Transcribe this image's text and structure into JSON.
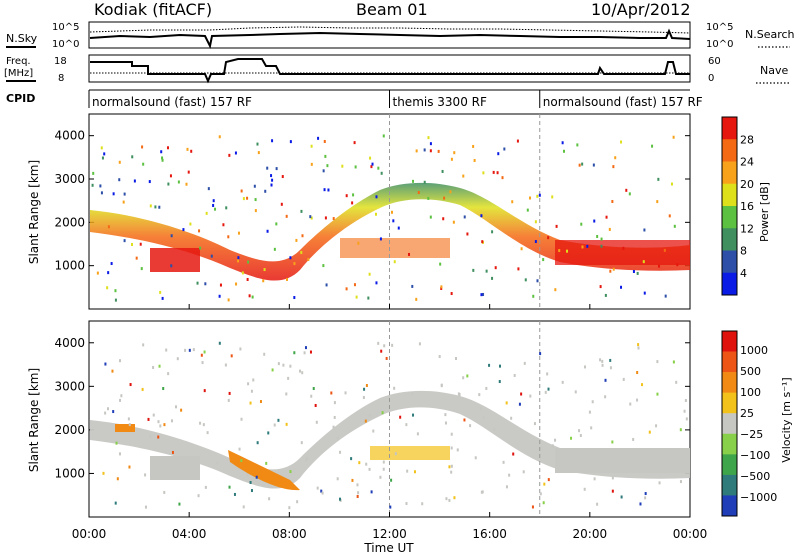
{
  "header": {
    "station": "Kodiak (fitACF)",
    "beam": "Beam 01",
    "date": "10/Apr/2012"
  },
  "aux": {
    "nsky_label": "N.Sky",
    "nsky_ticks": [
      "10^5",
      "10^0"
    ],
    "nsearch_label": "N.Search",
    "nsearch_ticks": [
      "10^5",
      "10^0"
    ],
    "freq_label_1": "Freq.",
    "freq_label_2": "[MHz]",
    "freq_ticks": [
      "18",
      "8"
    ],
    "nave_label": "Nave",
    "nave_ticks": [
      "60",
      "0"
    ],
    "cpid_label": "CPID",
    "cpid_segments": [
      {
        "label": "normalsound (fast) 157 RF",
        "start": 0
      },
      {
        "label": "themis 3300 RF",
        "start": 12
      },
      {
        "label": "normalsound (fast) 157 RF",
        "start": 18
      }
    ]
  },
  "chart_data": [
    {
      "type": "heatmap",
      "ylabel": "Slant Range [km]",
      "y_ticks": [
        "1000",
        "2000",
        "3000",
        "4000"
      ],
      "ylim": [
        0,
        4500
      ],
      "colorbar_label": "Power [dB]",
      "colorbar_ticks": [
        "4",
        "8",
        "12",
        "16",
        "20",
        "24",
        "28"
      ],
      "colorbar_colors": [
        "#0a1be6",
        "#2d4fa8",
        "#3f8f5f",
        "#5cc140",
        "#dfe01c",
        "#f7a21a",
        "#f46a14",
        "#e5170f"
      ],
      "dashed_marks_hours": [
        12,
        18
      ]
    },
    {
      "type": "heatmap",
      "ylabel": "Slant Range [km]",
      "y_ticks": [
        "1000",
        "2000",
        "3000",
        "4000"
      ],
      "ylim": [
        0,
        4500
      ],
      "xlabel": "Time UT",
      "x_ticks": [
        "00:00",
        "04:00",
        "08:00",
        "12:00",
        "16:00",
        "20:00",
        "00:00"
      ],
      "colorbar_label": "Velocity [m s⁻¹]",
      "colorbar_ticks": [
        "1000",
        "500",
        "100",
        "25",
        "−25",
        "−100",
        "−500",
        "−1000"
      ],
      "colorbar_colors": [
        "#1f3eb8",
        "#2f7a7a",
        "#3fa54a",
        "#88d04a",
        "#c6c6c2",
        "#f2c21a",
        "#f08a14",
        "#ec5516",
        "#e0120d"
      ],
      "dashed_marks_hours": [
        12,
        18
      ]
    }
  ]
}
